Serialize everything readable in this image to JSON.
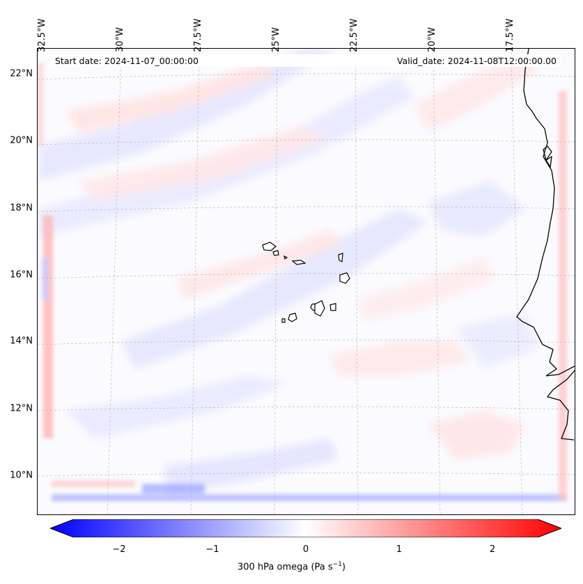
{
  "map": {
    "start_date": "Start date: 2024-11-07_00:00:00",
    "valid_date": "Valid_date: 2024-11-08T12:00:00.00",
    "lat_labels": [
      "22°N",
      "20°N",
      "18°N",
      "16°N",
      "14°N",
      "12°N",
      "10°N"
    ],
    "lon_labels": [
      "32.5°W",
      "30°W",
      "27.5°W",
      "25°W",
      "22.5°W",
      "20°W",
      "17.5°W"
    ],
    "colormap": "bwr",
    "min_color": "#0000ff",
    "mid_color": "#ffffff",
    "max_color": "#ff0000",
    "coastline_color": "#000000",
    "gridlines": true
  },
  "colorbar": {
    "ticks": [
      "−2",
      "−1",
      "0",
      "1",
      "2"
    ],
    "label": "300 hPa omega (Pa s",
    "label_sup": "−1",
    "label_end": ")",
    "extend": "both",
    "range": [
      -2.5,
      2.5
    ]
  }
}
